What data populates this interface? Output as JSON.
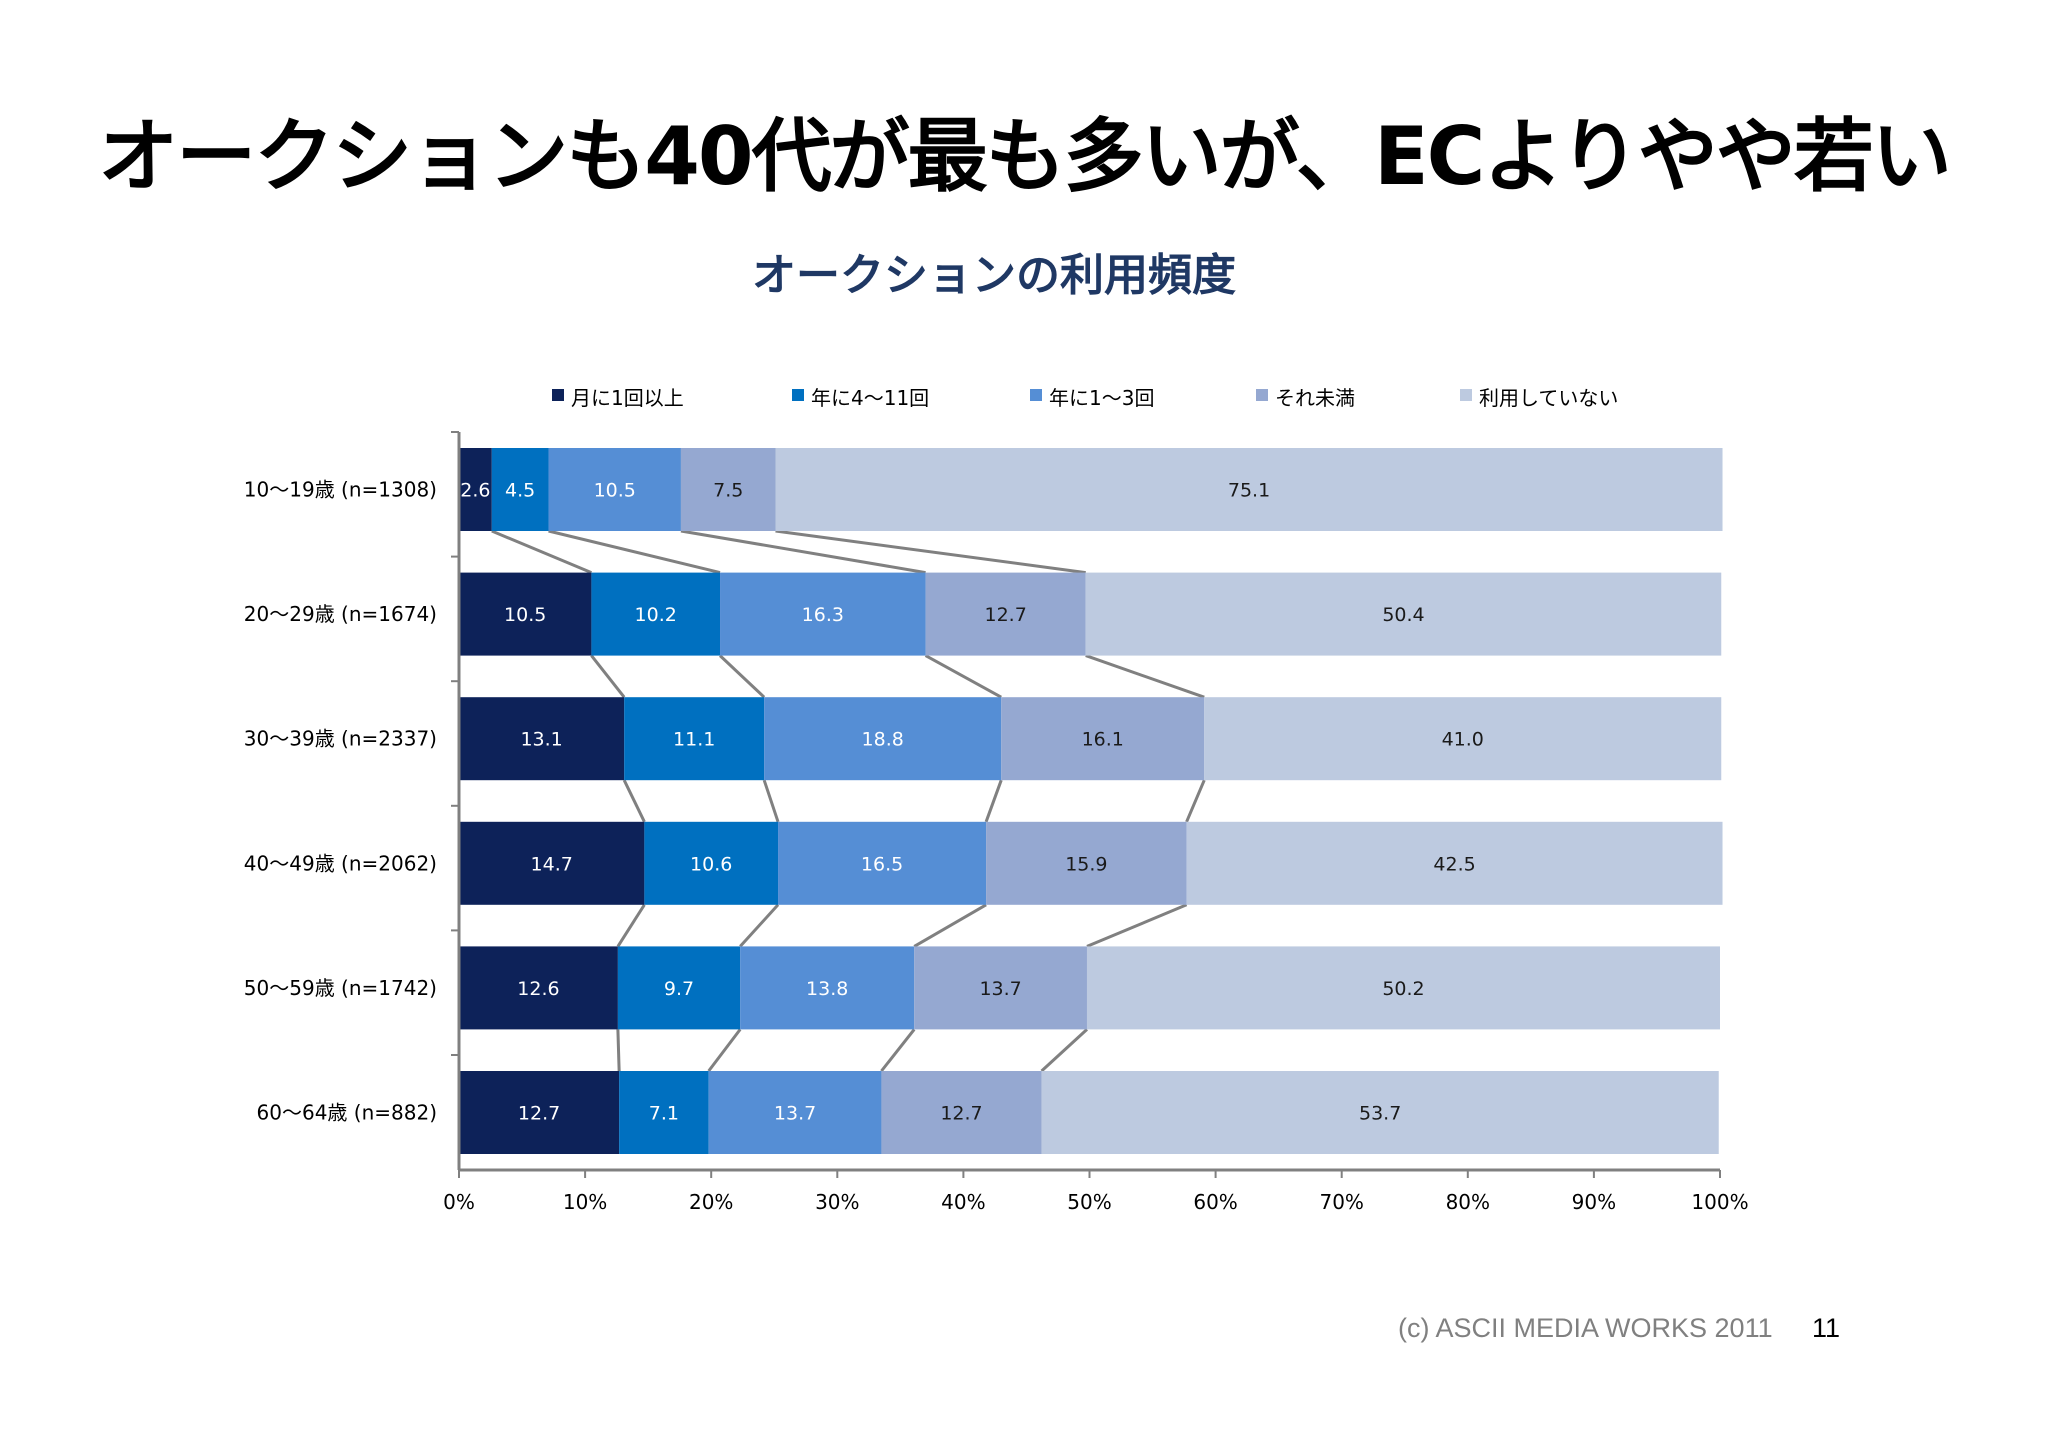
{
  "slide": {
    "title": "オークションも40代が最も多いが、ECよりやや若い",
    "footer": "(c) ASCII MEDIA WORKS 2011",
    "page_number": "11"
  },
  "colors": [
    "#0d2259",
    "#0070c0",
    "#558ed5",
    "#95a8d1",
    "#bdcae0"
  ],
  "connector_color": "#808080",
  "chart_data": {
    "type": "bar",
    "orientation": "horizontal",
    "stacked": "percent",
    "title": "オークションの利用頻度",
    "categories": [
      "10～19歳 (n=1308)",
      "20～29歳 (n=1674)",
      "30～39歳 (n=2337)",
      "40～49歳 (n=2062)",
      "50～59歳 (n=1742)",
      "60～64歳 (n=882)"
    ],
    "series": [
      {
        "name": "月に1回以上",
        "values": [
          2.6,
          10.5,
          13.1,
          14.7,
          12.6,
          12.7
        ]
      },
      {
        "name": "年に4～11回",
        "values": [
          4.5,
          10.2,
          11.1,
          10.6,
          9.7,
          7.1
        ]
      },
      {
        "name": "年に1～3回",
        "values": [
          10.5,
          16.3,
          18.8,
          16.5,
          13.8,
          13.7
        ]
      },
      {
        "name": "それ未満",
        "values": [
          7.5,
          12.7,
          16.1,
          15.9,
          13.7,
          12.7
        ]
      },
      {
        "name": "利用していない",
        "values": [
          75.1,
          50.4,
          41.0,
          42.5,
          50.2,
          53.7
        ]
      }
    ],
    "xlim": [
      0,
      100
    ],
    "xticks": [
      "0%",
      "10%",
      "20%",
      "30%",
      "40%",
      "50%",
      "60%",
      "70%",
      "80%",
      "90%",
      "100%"
    ],
    "legend": "top",
    "series_lines": true,
    "grid": false
  }
}
